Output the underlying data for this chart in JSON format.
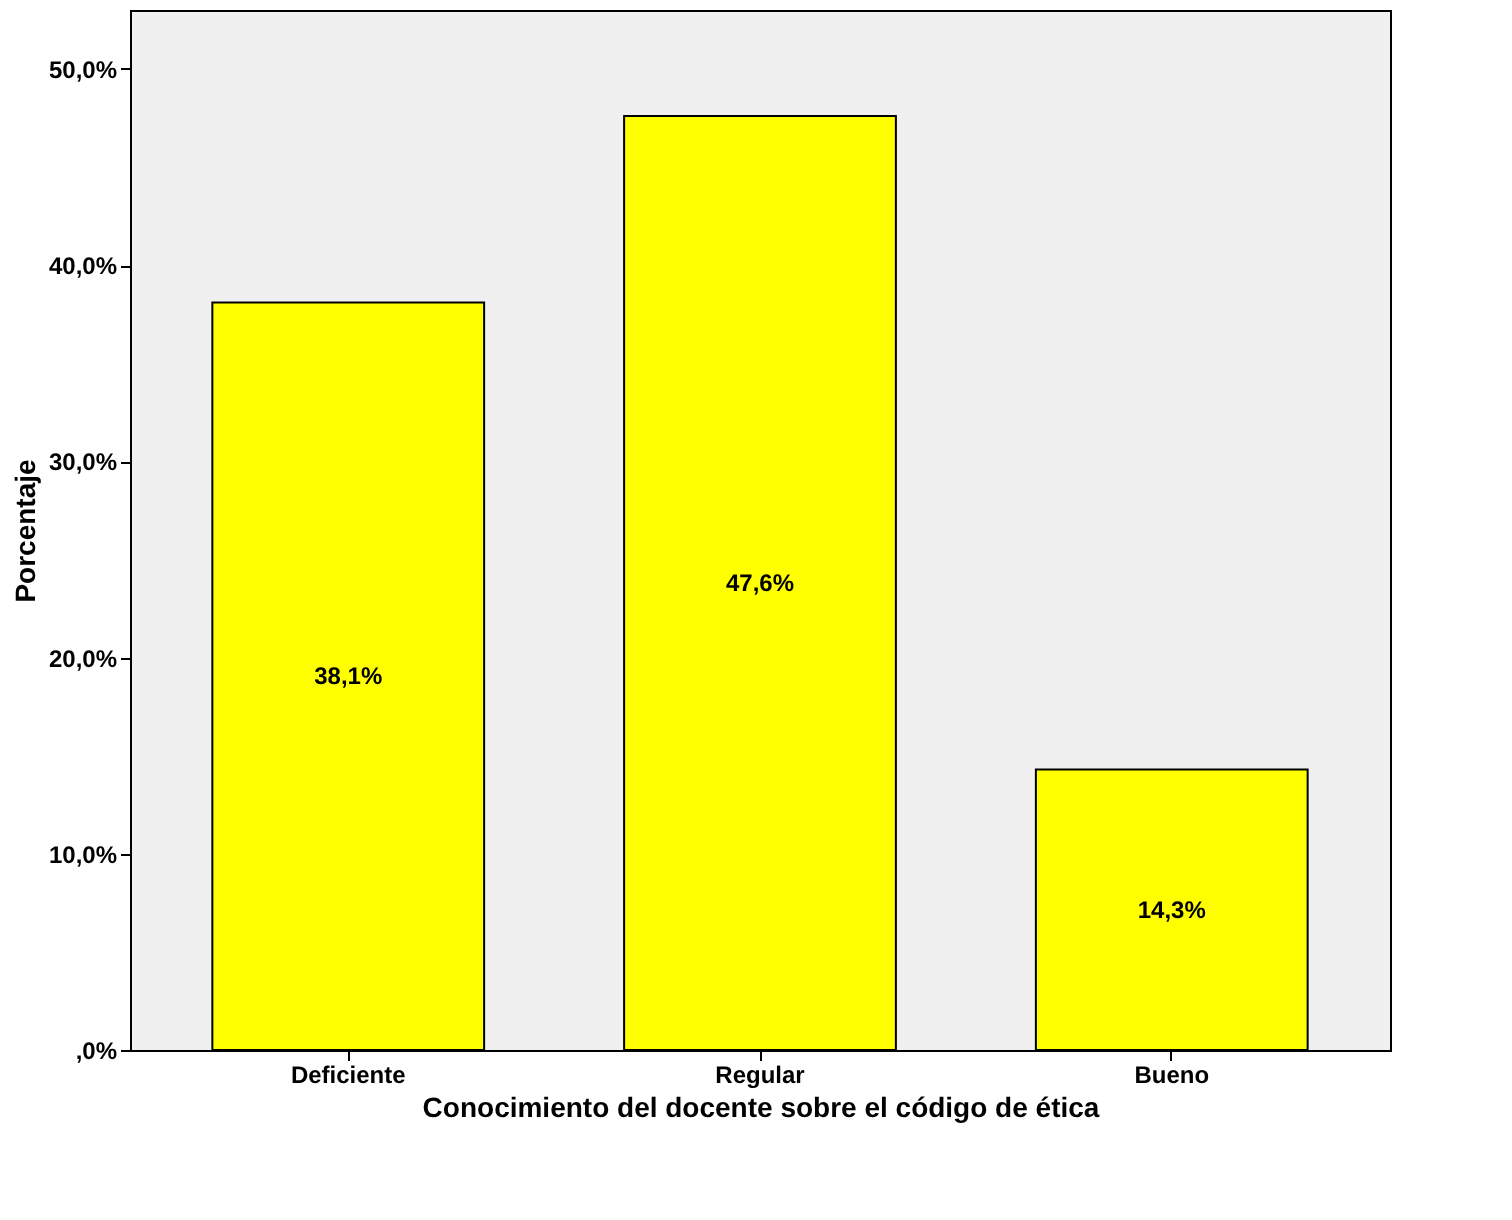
{
  "chart_data": {
    "type": "bar",
    "xlabel": "Conocimiento del docente sobre el código de ética",
    "ylabel": "Porcentaje",
    "categories": [
      "Deficiente",
      "Regular",
      "Bueno"
    ],
    "values": [
      38.1,
      47.6,
      14.3
    ],
    "value_labels": [
      "38,1%",
      "47,6%",
      "14,3%"
    ],
    "color": "#ffff00",
    "ylim": [
      0,
      53
    ],
    "yticks": [
      {
        "value": 0,
        "label": ",0%"
      },
      {
        "value": 10,
        "label": "10,0%"
      },
      {
        "value": 20,
        "label": "20,0%"
      },
      {
        "value": 30,
        "label": "30,0%"
      },
      {
        "value": 40,
        "label": "40,0%"
      },
      {
        "value": 50,
        "label": "50,0%"
      }
    ],
    "grid": false
  }
}
